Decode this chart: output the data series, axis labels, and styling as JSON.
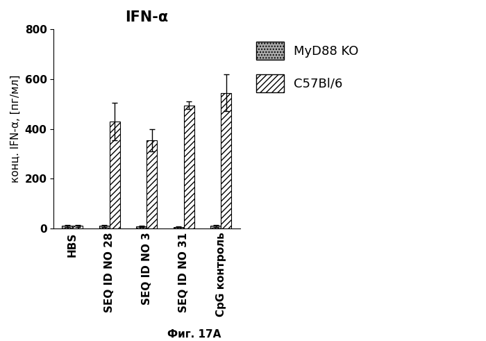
{
  "title": "IFN-α",
  "ylabel": "конц. IFN-α, [пг/мл]",
  "xlabel": "Фиг. 17A",
  "ylim": [
    0,
    800
  ],
  "yticks": [
    0,
    200,
    400,
    600,
    800
  ],
  "categories": [
    "HBS",
    "SEQ ID NO 28",
    "SEQ ID NO 3",
    "SEQ ID NO 31",
    "CpG контроль"
  ],
  "myd88_values": [
    10,
    10,
    8,
    7,
    10
  ],
  "c57bl6_values": [
    10,
    430,
    355,
    495,
    545
  ],
  "myd88_errors": [
    3,
    3,
    3,
    2,
    3
  ],
  "c57bl6_errors": [
    3,
    75,
    45,
    15,
    75
  ],
  "bar_width": 0.28,
  "legend_myd88": "MyD88 KO",
  "legend_c57bl6": "C57Bl/6",
  "myd88_color": "#aaaaaa",
  "c57bl6_color": "white",
  "myd88_hatch": "....",
  "c57bl6_hatch": "////",
  "background_color": "white",
  "title_fontsize": 15,
  "label_fontsize": 11,
  "tick_fontsize": 11,
  "legend_fontsize": 13
}
